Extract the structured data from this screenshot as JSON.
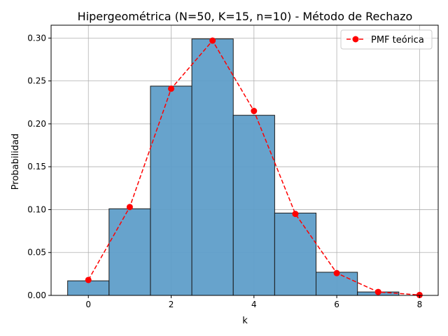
{
  "chart_data": {
    "type": "bar",
    "title": "Hipergeométrica (N=50, K=15, n=10) - Método de Rechazo",
    "xlabel": "k",
    "ylabel": "Probabilidad",
    "xlim": [
      -0.9,
      8.45
    ],
    "ylim": [
      0,
      0.315
    ],
    "x_ticks": [
      0,
      2,
      4,
      6,
      8
    ],
    "y_ticks": [
      0.0,
      0.05,
      0.1,
      0.15,
      0.2,
      0.25,
      0.3
    ],
    "grid": true,
    "legend_position": "top-right",
    "histogram": {
      "bin_centers": [
        0,
        1,
        2,
        3,
        4,
        5,
        6,
        7
      ],
      "bin_width": 1,
      "values": [
        0.017,
        0.101,
        0.244,
        0.299,
        0.21,
        0.096,
        0.027,
        0.004
      ],
      "color": "#5f9ec9"
    },
    "series": [
      {
        "name": "PMF teórica",
        "x": [
          0,
          1,
          2,
          3,
          4,
          5,
          6,
          7,
          8
        ],
        "values": [
          0.018,
          0.103,
          0.241,
          0.297,
          0.215,
          0.095,
          0.026,
          0.004,
          0.0005
        ],
        "color": "#ff0000"
      }
    ]
  }
}
